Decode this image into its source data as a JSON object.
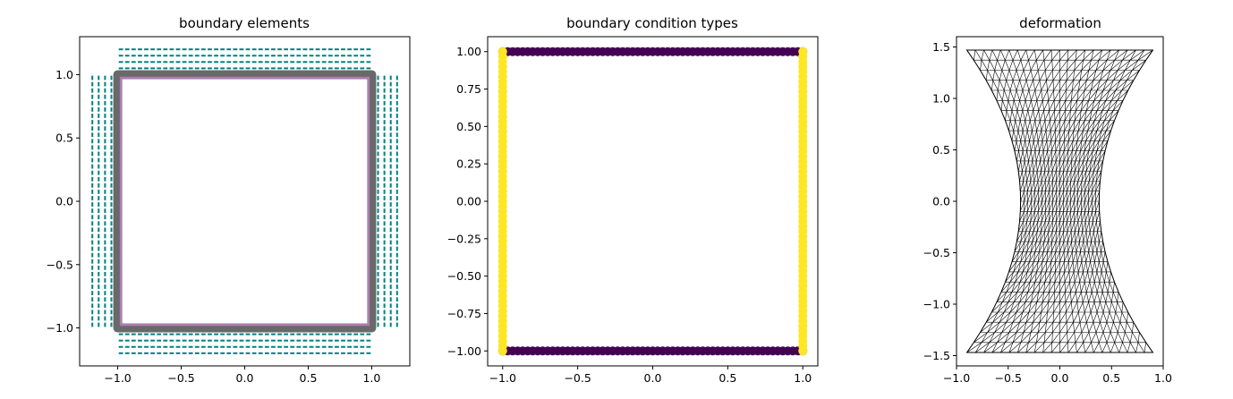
{
  "chart_data": [
    {
      "type": "scatter",
      "title": "boundary elements",
      "xlabel": "",
      "ylabel": "",
      "xlim": [
        -1.3,
        1.3
      ],
      "ylim": [
        -1.3,
        1.3
      ],
      "xticks": [
        -1.0,
        -0.5,
        0.0,
        0.5,
        1.0
      ],
      "yticks": [
        -1.0,
        -0.5,
        0.0,
        0.5,
        1.0
      ],
      "xtick_labels": [
        "−1.0",
        "−0.5",
        "0.0",
        "0.5",
        "1.0"
      ],
      "ytick_labels": [
        "−1.0",
        "−0.5",
        "0.0",
        "0.5",
        "1.0"
      ],
      "grid": false,
      "series": [
        {
          "kind": "square_outline",
          "color": "#696969",
          "halfwidth": 1.0
        },
        {
          "kind": "square_outline",
          "color": "#b07cb0",
          "halfwidth": 0.975
        },
        {
          "kind": "normal_ticks",
          "color": "#008080",
          "offsets": [
            1.05,
            1.1,
            1.15,
            1.2
          ],
          "range": [
            -1.0,
            1.0
          ],
          "count": 40
        }
      ]
    },
    {
      "type": "scatter",
      "title": "boundary condition types",
      "xlabel": "",
      "ylabel": "",
      "xlim": [
        -1.1,
        1.1
      ],
      "ylim": [
        -1.1,
        1.1
      ],
      "xticks": [
        -1.0,
        -0.5,
        0.0,
        0.5,
        1.0
      ],
      "yticks": [
        -1.0,
        -0.75,
        -0.5,
        -0.25,
        0.0,
        0.25,
        0.5,
        0.75,
        1.0
      ],
      "xtick_labels": [
        "−1.0",
        "−0.5",
        "0.0",
        "0.5",
        "1.0"
      ],
      "ytick_labels": [
        "−1.00",
        "−0.75",
        "−0.50",
        "−0.25",
        "0.00",
        "0.25",
        "0.50",
        "0.75",
        "1.00"
      ],
      "grid": false,
      "series": [
        {
          "side": "top",
          "color": "#440154",
          "value": 0,
          "range": [
            -1.0,
            1.0
          ]
        },
        {
          "side": "bottom",
          "color": "#440154",
          "value": 0,
          "range": [
            -1.0,
            1.0
          ]
        },
        {
          "side": "left",
          "color": "#fde725",
          "value": 1,
          "range": [
            -1.0,
            1.0
          ]
        },
        {
          "side": "right",
          "color": "#fde725",
          "value": 1,
          "range": [
            -1.0,
            1.0
          ]
        }
      ]
    },
    {
      "type": "mesh",
      "title": "deformation",
      "xlabel": "",
      "ylabel": "",
      "xlim": [
        -1.0,
        1.0
      ],
      "ylim": [
        -1.6,
        1.6
      ],
      "xticks": [
        -1.0,
        -0.5,
        0.0,
        0.5,
        1.0
      ],
      "yticks": [
        -1.5,
        -1.0,
        -0.5,
        0.0,
        0.5,
        1.0,
        1.5
      ],
      "xtick_labels": [
        "−1.0",
        "−0.5",
        "0.0",
        "0.5",
        "1.0"
      ],
      "ytick_labels": [
        "−1.5",
        "−1.0",
        "−0.5",
        "0.0",
        "0.5",
        "1.0",
        "1.5"
      ],
      "grid": false,
      "mesh": {
        "color": "#000000",
        "corner_x": 0.9,
        "waist_x": 0.38,
        "y_top": 1.47,
        "y_bottom": -1.47
      }
    }
  ]
}
